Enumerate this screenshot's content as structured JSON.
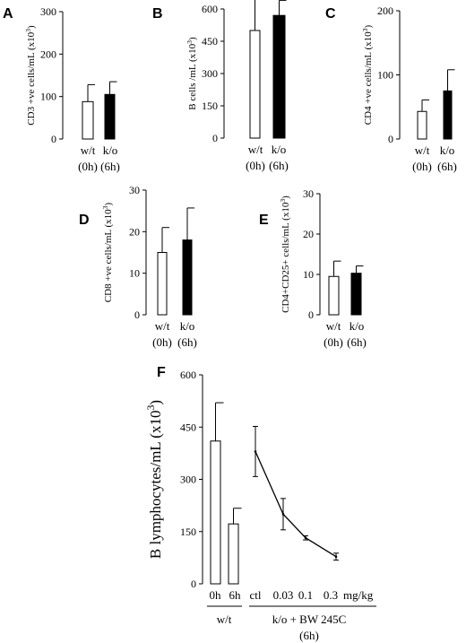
{
  "chart_data": [
    {
      "panel": "A",
      "type": "bar",
      "ylabel": "CD3 +ve cells/mL (x10³)",
      "ylim": [
        0,
        300
      ],
      "yticks": [
        "0",
        "100",
        "200",
        "300"
      ],
      "categories": [
        [
          "w/t",
          "(0h)"
        ],
        [
          "k/o",
          "(6h)"
        ]
      ],
      "values": [
        88,
        105
      ],
      "errors": [
        40,
        30
      ],
      "fills": [
        "#ffffff",
        "#000000"
      ]
    },
    {
      "panel": "B",
      "type": "bar",
      "ylabel": "B cells /mL (x10³)",
      "ylim": [
        0,
        600
      ],
      "yticks": [
        "0",
        "150",
        "300",
        "450",
        "600"
      ],
      "categories": [
        [
          "w/t",
          "(0h)"
        ],
        [
          "k/o",
          "(6h)"
        ]
      ],
      "values": [
        500,
        570
      ],
      "errors": [
        170,
        70
      ],
      "fills": [
        "#ffffff",
        "#000000"
      ]
    },
    {
      "panel": "C",
      "type": "bar",
      "ylabel": "CD4 +ve cells/mL (x10³)",
      "ylim": [
        0,
        200
      ],
      "yticks": [
        "0",
        "100",
        "200"
      ],
      "categories": [
        [
          "w/t",
          "(0h)"
        ],
        [
          "k/o",
          "(6h)"
        ]
      ],
      "values": [
        43,
        75
      ],
      "errors": [
        18,
        33
      ],
      "fills": [
        "#ffffff",
        "#000000"
      ]
    },
    {
      "panel": "D",
      "type": "bar",
      "ylabel": "CD8 +ve cells/mL (x10³)",
      "ylim": [
        0,
        30
      ],
      "yticks": [
        "0",
        "10",
        "20",
        "30"
      ],
      "categories": [
        [
          "w/t",
          "(0h)"
        ],
        [
          "k/o",
          "(6h)"
        ]
      ],
      "values": [
        15,
        18
      ],
      "errors": [
        6,
        7.7
      ],
      "fills": [
        "#ffffff",
        "#000000"
      ]
    },
    {
      "panel": "E",
      "type": "bar",
      "ylabel": "CD4+CD25+ cells/mL (x10³)",
      "ylim": [
        0,
        30
      ],
      "yticks": [
        "0",
        "10",
        "20",
        "30"
      ],
      "categories": [
        [
          "w/t",
          "(0h)"
        ],
        [
          "k/o",
          "(6h)"
        ]
      ],
      "values": [
        9.5,
        10.3
      ],
      "errors": [
        3.8,
        1.8
      ],
      "fills": [
        "#ffffff",
        "#000000"
      ]
    },
    {
      "panel": "F",
      "type": "bar+line",
      "ylabel": "B lymphocytes/mL (x10³)",
      "ylim": [
        0,
        600
      ],
      "yticks": [
        "0",
        "150",
        "300",
        "450",
        "600"
      ],
      "bars": {
        "categories": [
          "0h",
          "6h"
        ],
        "values": [
          410,
          172
        ],
        "errors": [
          110,
          45
        ],
        "group_label": "w/t"
      },
      "line": {
        "categories": [
          "ctl",
          "0.03",
          "0.1",
          "0.3"
        ],
        "unit": "mg/kg",
        "values": [
          380,
          200,
          132,
          78
        ],
        "errors": [
          72,
          45,
          6,
          10
        ],
        "group_label": [
          "k/o + BW 245C",
          "(6h)"
        ]
      }
    }
  ]
}
